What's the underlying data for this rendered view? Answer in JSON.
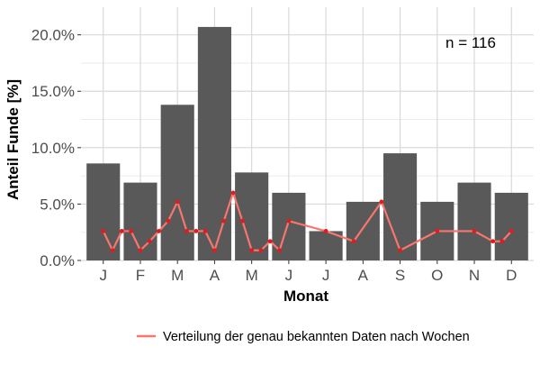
{
  "chart_data": {
    "type": "bar",
    "title": "",
    "xlabel": "Monat",
    "ylabel": "Anteil Funde [%]",
    "annotation": "n = 116",
    "categories": [
      "J",
      "F",
      "M",
      "A",
      "M",
      "J",
      "J",
      "A",
      "S",
      "O",
      "N",
      "D"
    ],
    "ylim": [
      0,
      0.2245
    ],
    "y_ticks": [
      0,
      0.05,
      0.1,
      0.15,
      0.2
    ],
    "y_tick_labels": [
      "0.0%",
      "5.0%",
      "10.0%",
      "15.0%",
      "20.0%"
    ],
    "grid": true,
    "legend_position": "bottom",
    "series": [
      {
        "kind": "bar",
        "values": [
          0.086,
          0.069,
          0.138,
          0.207,
          0.078,
          0.06,
          0.026,
          0.052,
          0.095,
          0.052,
          0.069,
          0.06
        ],
        "color": "#595959"
      },
      {
        "kind": "line",
        "name": "Verteilung der genau bekannten Daten nach Wochen",
        "color": "#f8766d",
        "point_color": "#e41a1c",
        "x": [
          1.0,
          1.25,
          1.5,
          1.75,
          2.0,
          2.25,
          2.5,
          2.75,
          3.0,
          3.25,
          3.5,
          3.75,
          4.0,
          4.25,
          4.5,
          4.75,
          5.0,
          5.25,
          5.5,
          5.75,
          6.0,
          7.0,
          7.75,
          8.5,
          9.0,
          10.0,
          11.0,
          11.5,
          11.75,
          12.0
        ],
        "values": [
          0.026,
          0.009,
          0.026,
          0.026,
          0.009,
          0.017,
          0.026,
          0.035,
          0.052,
          0.026,
          0.026,
          0.026,
          0.009,
          0.035,
          0.06,
          0.035,
          0.009,
          0.009,
          0.017,
          0.009,
          0.035,
          0.026,
          0.017,
          0.052,
          0.009,
          0.026,
          0.026,
          0.017,
          0.017,
          0.026
        ]
      }
    ]
  },
  "colors": {
    "panel_background": "#ffffff",
    "grid": "#d9d9d9",
    "axis_text": "#4d4d4d",
    "title_text": "#000000"
  }
}
